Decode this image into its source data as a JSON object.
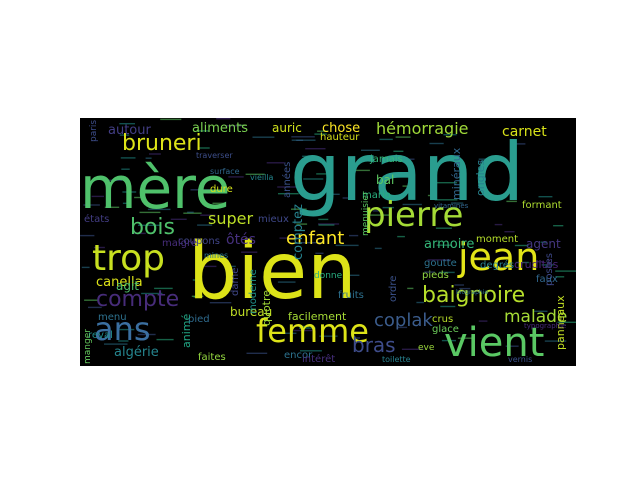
{
  "image": {
    "kind": "word cloud",
    "background": "#000000",
    "page_background": "#ffffff",
    "colormap": "viridis"
  },
  "words": [
    {
      "text": "bien",
      "color": "#dde318"
    },
    {
      "text": "grand",
      "color": "#2a9d8f"
    },
    {
      "text": "mère",
      "color": "#4fc16b"
    },
    {
      "text": "pierre",
      "color": "#a5db36"
    },
    {
      "text": "jean",
      "color": "#e2e418"
    },
    {
      "text": "vient",
      "color": "#5ac864"
    },
    {
      "text": "femme",
      "color": "#dde318"
    },
    {
      "text": "trop",
      "color": "#c8e020"
    },
    {
      "text": "ans",
      "color": "#3b6fa0"
    },
    {
      "text": "baignoire",
      "color": "#b6de2b"
    },
    {
      "text": "compte",
      "color": "#472c7a"
    },
    {
      "text": "bruneri",
      "color": "#dde318"
    },
    {
      "text": "bois",
      "color": "#4fc16b"
    },
    {
      "text": "enfant",
      "color": "#fde725"
    },
    {
      "text": "bras",
      "color": "#3e4c8a"
    },
    {
      "text": "coplak",
      "color": "#3b5c8c"
    },
    {
      "text": "hémorragie",
      "color": "#a0da39"
    },
    {
      "text": "malade",
      "color": "#a5db36"
    },
    {
      "text": "canella",
      "color": "#dde318"
    },
    {
      "text": "super",
      "color": "#bddf26"
    },
    {
      "text": "aliments",
      "color": "#7ad151"
    },
    {
      "text": "autour",
      "color": "#433e85"
    },
    {
      "text": "agit",
      "color": "#4fc16b"
    },
    {
      "text": "carnet",
      "color": "#d8e219"
    },
    {
      "text": "chose",
      "color": "#fde725"
    },
    {
      "text": "auric",
      "color": "#cfe11c"
    },
    {
      "text": "bal",
      "color": "#5ec962"
    },
    {
      "text": "algérie",
      "color": "#25858e"
    },
    {
      "text": "armoire",
      "color": "#35b779"
    },
    {
      "text": "agent",
      "color": "#453781"
    },
    {
      "text": "ôtés",
      "color": "#46307e"
    },
    {
      "text": "comptez",
      "color": "#26828e"
    },
    {
      "text": "bureau",
      "color": "#c0df25"
    },
    {
      "text": "facilement",
      "color": "#a5db36"
    },
    {
      "text": "crudités",
      "color": "#482475"
    },
    {
      "text": "hauteur",
      "color": "#d8e219"
    },
    {
      "text": "mario",
      "color": "#29af7f"
    },
    {
      "text": "jamais",
      "color": "#35b779"
    },
    {
      "text": "minéraux",
      "color": "#31688e"
    },
    {
      "text": "ongles",
      "color": "#26828e"
    },
    {
      "text": "formant",
      "color": "#addc30"
    },
    {
      "text": "moment",
      "color": "#b5de2b"
    },
    {
      "text": "menuisier",
      "color": "#5cc863"
    },
    {
      "text": "goutte",
      "color": "#2c728e"
    },
    {
      "text": "pieds",
      "color": "#90d743"
    },
    {
      "text": "degrés",
      "color": "#27808e"
    },
    {
      "text": "glace",
      "color": "#6ccd5a"
    },
    {
      "text": "crus",
      "color": "#b8de29"
    },
    {
      "text": "postes",
      "color": "#3e4989"
    },
    {
      "text": "panneaux",
      "color": "#c2df23"
    },
    {
      "text": "faux",
      "color": "#31688e"
    },
    {
      "text": "fruits",
      "color": "#2d708e"
    },
    {
      "text": "ordre",
      "color": "#3b528b"
    },
    {
      "text": "donne",
      "color": "#28ae80"
    },
    {
      "text": "quotre",
      "color": "#a2da37"
    },
    {
      "text": "moderne",
      "color": "#20928c"
    },
    {
      "text": "dame",
      "color": "#3f4788"
    },
    {
      "text": "pied",
      "color": "#2f6b8e"
    },
    {
      "text": "animé",
      "color": "#22a785"
    },
    {
      "text": "encor",
      "color": "#2c728e"
    },
    {
      "text": "intérêt",
      "color": "#472f7d"
    },
    {
      "text": "faites",
      "color": "#95d840"
    },
    {
      "text": "menu",
      "color": "#2d718e"
    },
    {
      "text": "reval",
      "color": "#228c8d"
    },
    {
      "text": "manger",
      "color": "#65cb5e"
    },
    {
      "text": "coupons",
      "color": "#404588"
    },
    {
      "text": "malgré",
      "color": "#472d7b"
    },
    {
      "text": "états",
      "color": "#433d84"
    },
    {
      "text": "paris",
      "color": "#3d4d8a"
    },
    {
      "text": "dure",
      "color": "#d5e21a"
    },
    {
      "text": "mieux",
      "color": "#3f4889"
    },
    {
      "text": "années",
      "color": "#3b528b"
    },
    {
      "text": "toilette",
      "color": "#27808e"
    },
    {
      "text": "eve",
      "color": "#9bd93c"
    },
    {
      "text": "vernis",
      "color": "#3b518b"
    },
    {
      "text": "mines",
      "color": "#2a788e"
    },
    {
      "text": "surface",
      "color": "#31688e"
    },
    {
      "text": "vieilla",
      "color": "#24868e"
    },
    {
      "text": "traverser",
      "color": "#3d4e8a"
    },
    {
      "text": "vitamines",
      "color": "#32658e"
    },
    {
      "text": "biographie",
      "color": "#2c738e"
    },
    {
      "text": "typographie",
      "color": "#472a7a"
    }
  ]
}
